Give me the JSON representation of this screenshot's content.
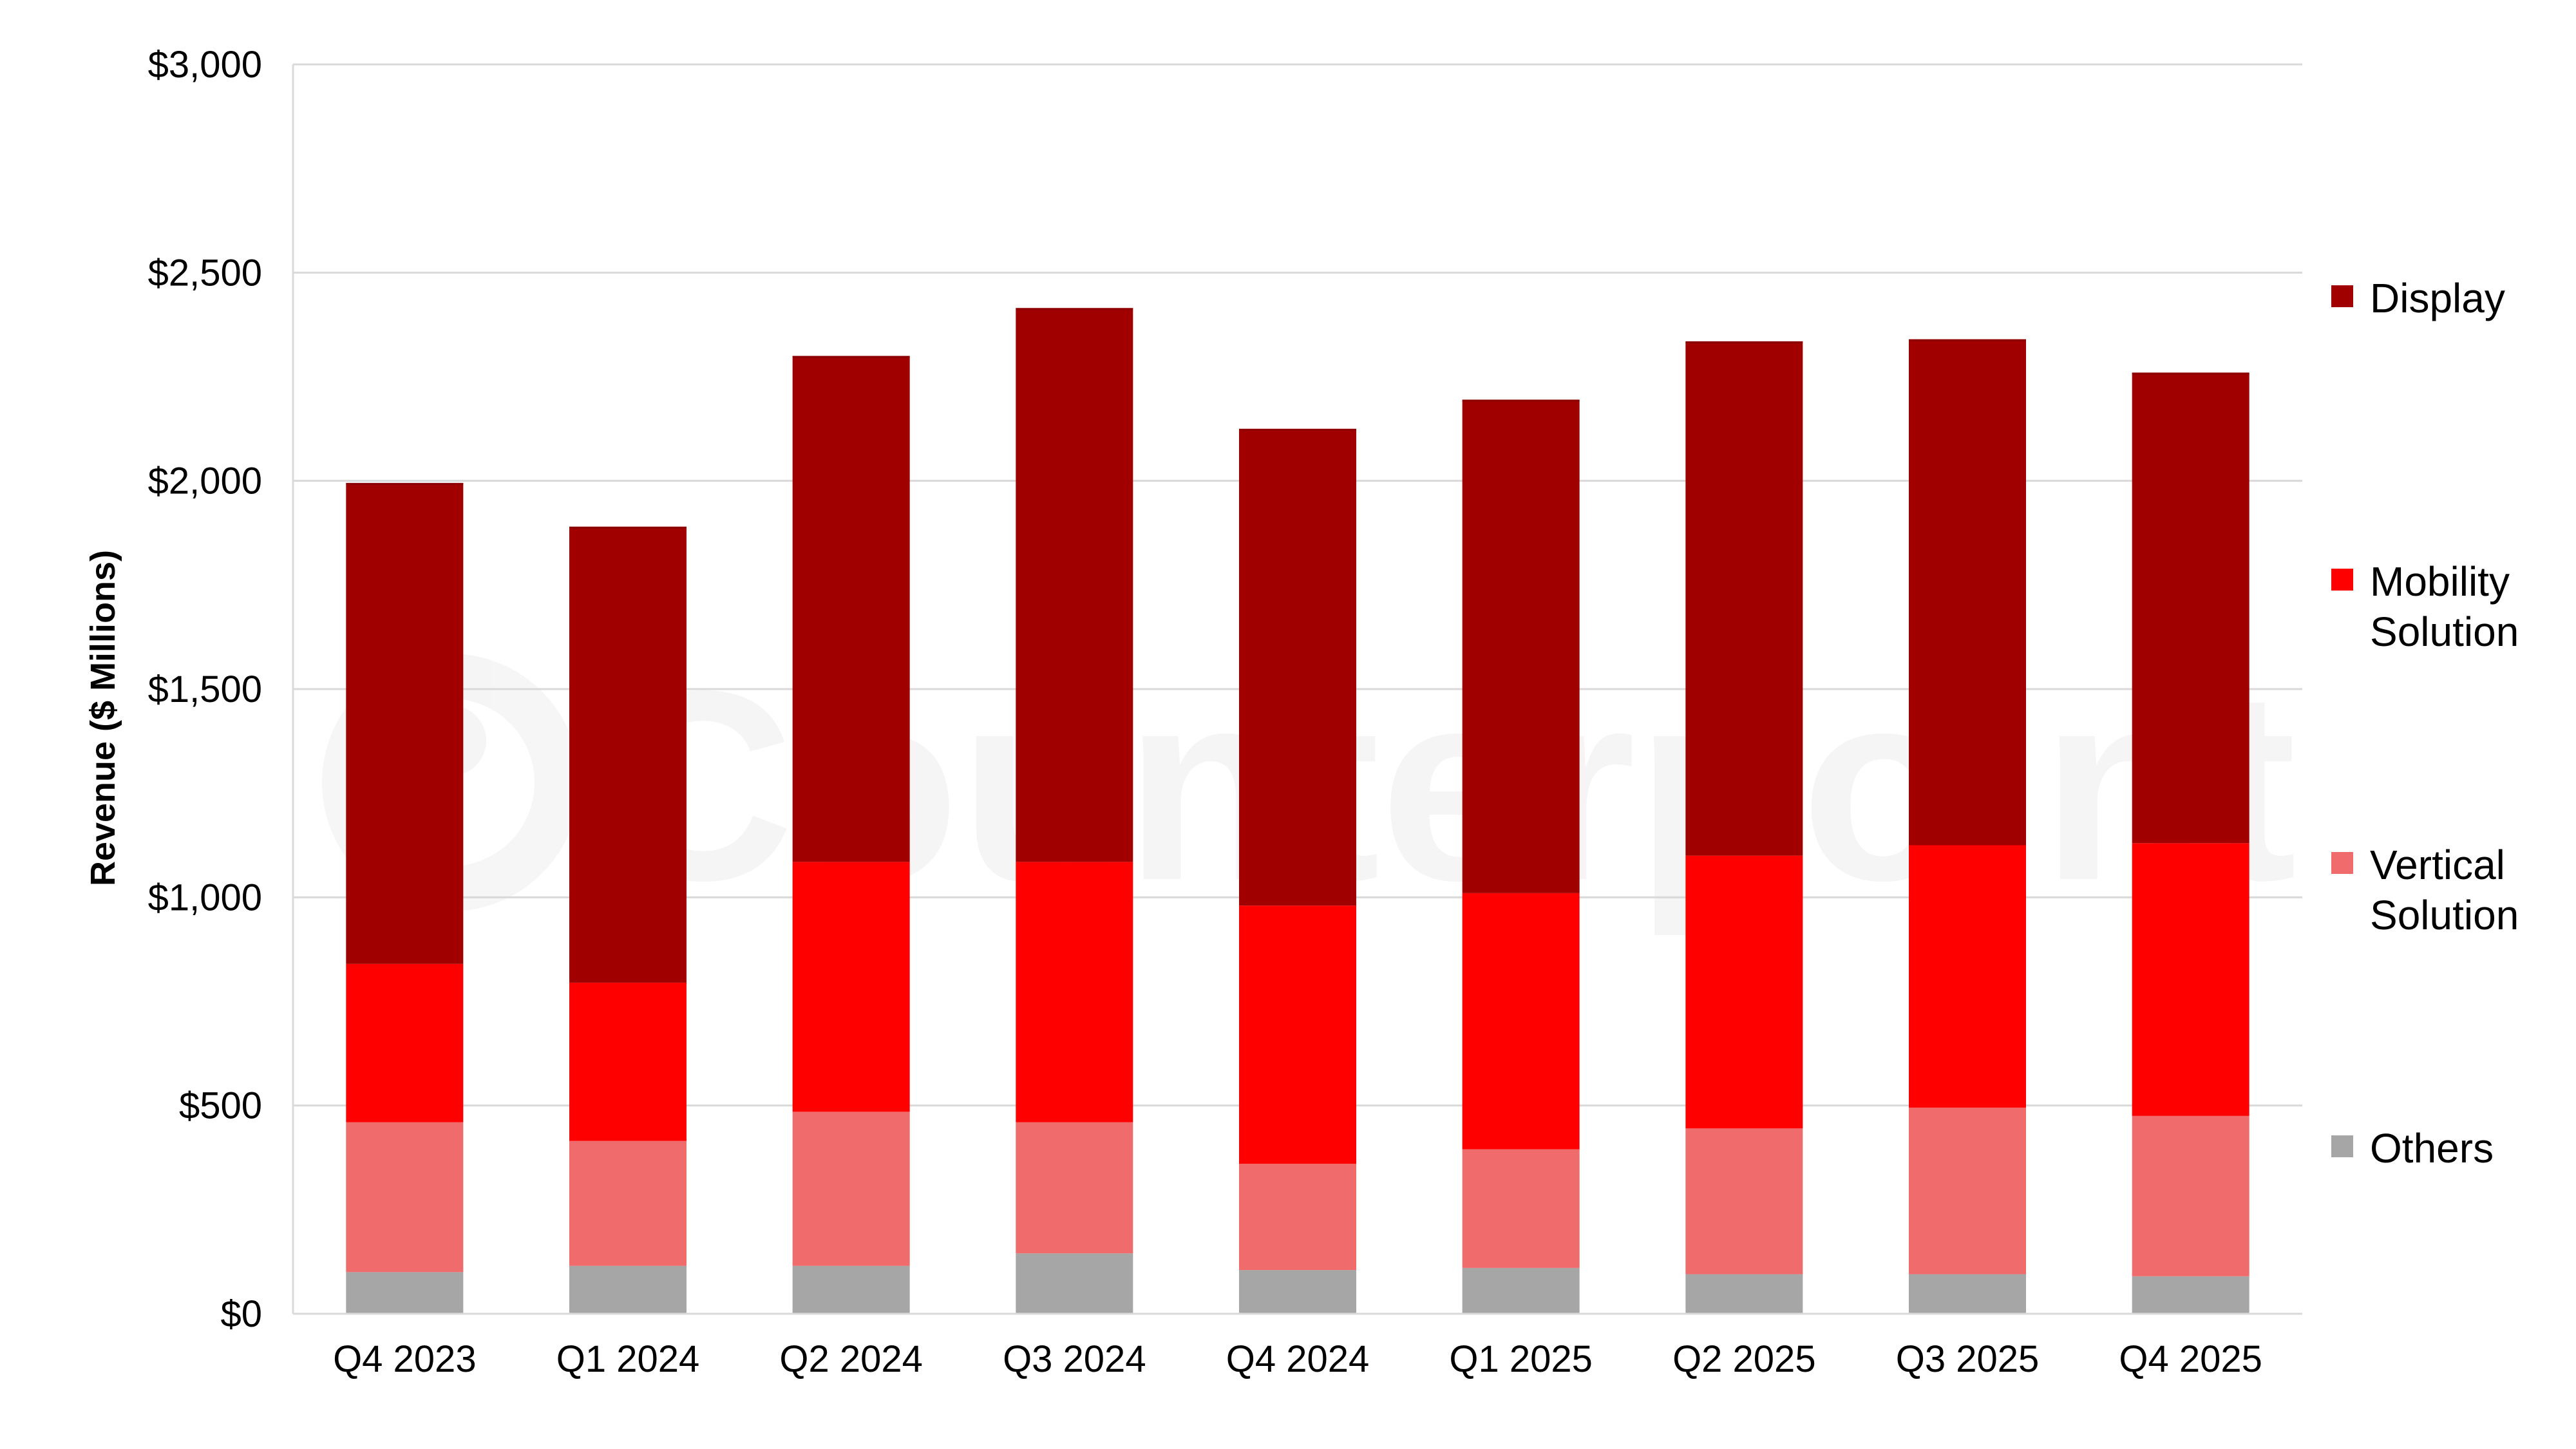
{
  "watermark": "Counterpoint",
  "chart_data": {
    "type": "bar",
    "stacked": true,
    "title": "",
    "xlabel": "",
    "ylabel": "Revenue ($ Millions)",
    "ylim": [
      0,
      3000
    ],
    "yticks": [
      0,
      500,
      1000,
      1500,
      2000,
      2500,
      3000
    ],
    "ytick_labels": [
      "$0",
      "$500",
      "$1,000",
      "$1,500",
      "$2,000",
      "$2,500",
      "$3,000"
    ],
    "grid": true,
    "legend_position": "right",
    "categories": [
      "Q4 2023",
      "Q1 2024",
      "Q2 2024",
      "Q3 2024",
      "Q4 2024",
      "Q1 2025",
      "Q2 2025",
      "Q3 2025",
      "Q4 2025"
    ],
    "series": [
      {
        "name": "Others",
        "legend_lines": [
          "Others"
        ],
        "color": "#A6A6A6",
        "values": [
          100,
          115,
          115,
          145,
          105,
          110,
          95,
          95,
          90
        ]
      },
      {
        "name": "Vertical Solution",
        "legend_lines": [
          "Vertical",
          "Solution"
        ],
        "color": "#F06C6C",
        "values": [
          360,
          300,
          370,
          315,
          255,
          285,
          350,
          400,
          385
        ]
      },
      {
        "name": "Mobility Solution",
        "legend_lines": [
          "Mobility",
          "Solution"
        ],
        "color": "#FF0000",
        "values": [
          380,
          380,
          600,
          625,
          620,
          615,
          655,
          630,
          655
        ]
      },
      {
        "name": "Display",
        "legend_lines": [
          "Display"
        ],
        "color": "#A00000",
        "values": [
          1155,
          1095,
          1215,
          1330,
          1145,
          1185,
          1235,
          1215,
          1130
        ]
      }
    ]
  }
}
